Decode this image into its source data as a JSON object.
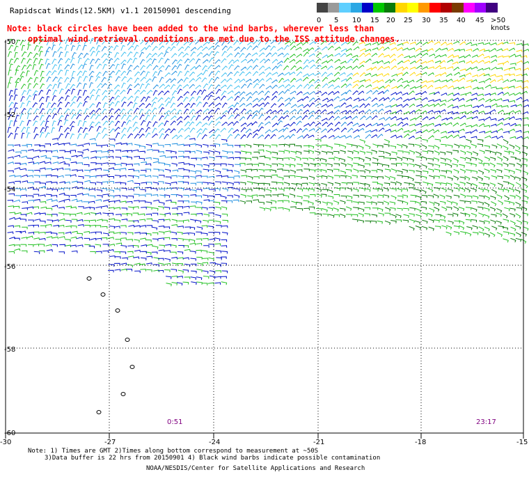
{
  "title": "Rapidscat Winds(12.5KM) v1.1 20150901 descending",
  "note": {
    "line1": "Note: black circles have been added to the wind barbs, wherever less than",
    "line2": "optimal wind retrieval conditions are met due to the ISS attitude changes."
  },
  "legend": {
    "labels": [
      "0",
      "5",
      "10",
      "15",
      "20",
      "25",
      "30",
      "35",
      "40",
      "45",
      ">50 knots"
    ],
    "colors": [
      "#444444",
      "#9a9a9a",
      "#5fcfff",
      "#2aa7e4",
      "#0000c8",
      "#00c800",
      "#0a7a0a",
      "#ffd700",
      "#ffff00",
      "#ff9900",
      "#ff0000",
      "#b00000",
      "#7a3a00",
      "#ff00ff",
      "#a000ff",
      "#400080"
    ]
  },
  "map": {
    "lat_labels": [
      "-50",
      "-52",
      "-54",
      "-56",
      "-58",
      "-60"
    ],
    "lon_labels": [
      "-30",
      "-27",
      "-24",
      "-21",
      "-18",
      "-15"
    ],
    "time_labels": [
      "0:51",
      "23:17"
    ]
  },
  "footnotes": {
    "line1": "Note: 1) Times are GMT 2)Times along bottom correspond to measurement at ~50S",
    "line2": "3)Data buffer is 22 hrs from 20150901 4) Black wind barbs indicate possible contamination"
  },
  "credit": "NOAA/NESDIS/Center for Satellite Applications and Research",
  "colors": {
    "note": "#ff0000",
    "time_label": "#800080"
  }
}
